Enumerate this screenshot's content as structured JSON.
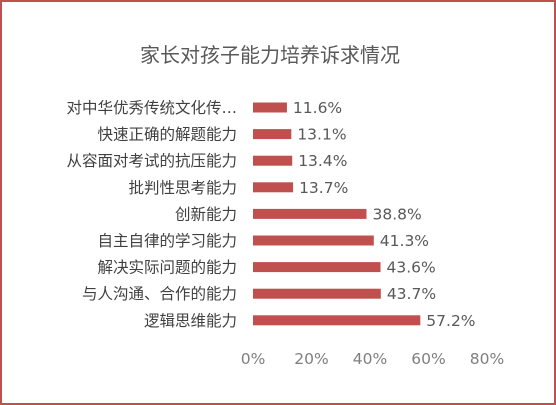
{
  "chart_data": {
    "type": "bar",
    "orientation": "horizontal",
    "title": "家长对孩子能力培养诉求情况",
    "xlabel": "",
    "ylabel": "",
    "categories": [
      "对中华优秀传统文化传…",
      "快速正确的解题能力",
      "从容面对考试的抗压能力",
      "批判性思考能力",
      "创新能力",
      "自主自律的学习能力",
      "解决实际问题的能力",
      "与人沟通、合作的能力",
      "逻辑思维能力"
    ],
    "values": [
      11.6,
      13.1,
      13.4,
      13.7,
      38.8,
      41.3,
      43.6,
      43.7,
      57.2
    ],
    "value_labels": [
      "11.6%",
      "13.1%",
      "13.4%",
      "13.7%",
      "38.8%",
      "41.3%",
      "43.6%",
      "43.7%",
      "57.2%"
    ],
    "xlim": [
      0,
      80
    ],
    "x_ticks": [
      "0%",
      "20%",
      "40%",
      "60%",
      "80%"
    ],
    "grid": false,
    "legend": "none",
    "colors": {
      "bar": "#c0504d",
      "frame": "#c0504d"
    }
  }
}
